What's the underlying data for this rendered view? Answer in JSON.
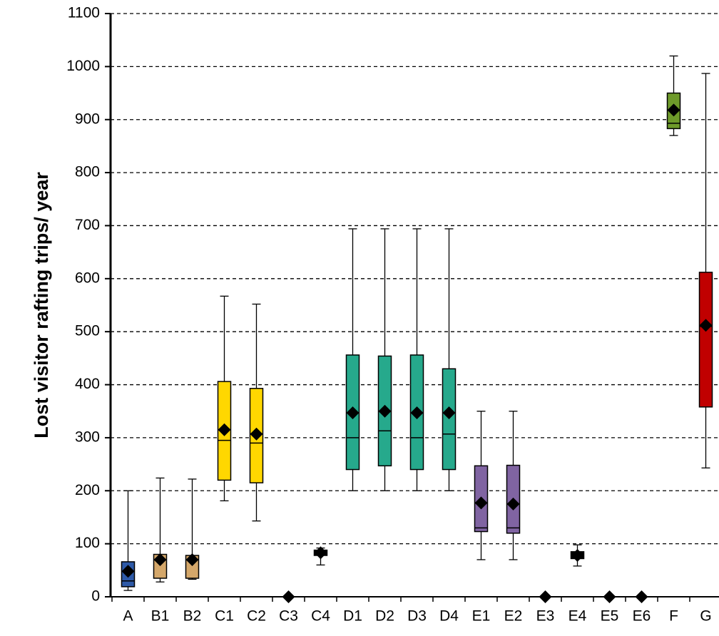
{
  "chart_data": {
    "type": "box",
    "y_label": "Lost visitor rafting trips/ year",
    "categories": [
      "A",
      "B1",
      "B2",
      "C1",
      "C2",
      "C3",
      "C4",
      "D1",
      "D2",
      "D3",
      "D4",
      "E1",
      "E2",
      "E3",
      "E4",
      "E5",
      "E6",
      "F",
      "G"
    ],
    "min": [
      12,
      28,
      33,
      181,
      143,
      0,
      60,
      200,
      200,
      200,
      200,
      70,
      70,
      0,
      58,
      0,
      0,
      870,
      243
    ],
    "q1": [
      19,
      35,
      35,
      220,
      215,
      0,
      78,
      240,
      247,
      240,
      240,
      123,
      120,
      0,
      72,
      0,
      0,
      883,
      358
    ],
    "median": [
      30,
      70,
      70,
      295,
      290,
      0,
      82,
      300,
      313,
      300,
      307,
      130,
      130,
      0,
      78,
      0,
      0,
      893,
      510
    ],
    "q3": [
      66,
      80,
      78,
      406,
      393,
      0,
      88,
      456,
      454,
      456,
      430,
      247,
      248,
      0,
      85,
      0,
      0,
      950,
      612
    ],
    "max": [
      200,
      224,
      222,
      567,
      552,
      0,
      92,
      694,
      694,
      694,
      694,
      350,
      350,
      0,
      98,
      0,
      0,
      1020,
      987
    ],
    "mean": [
      48,
      70,
      70,
      315,
      307,
      0,
      83,
      347,
      350,
      347,
      347,
      177,
      175,
      0,
      78,
      0,
      0,
      918,
      512
    ],
    "colors": [
      "#2e5aa8",
      "#d4a76a",
      "#d4a76a",
      "#ffd700",
      "#ffd700",
      "#000000",
      "#000000",
      "#26a98c",
      "#26a98c",
      "#26a98c",
      "#26a98c",
      "#8064a2",
      "#8064a2",
      "#000000",
      "#000000",
      "#000000",
      "#000000",
      "#6e9a2a",
      "#c00000"
    ],
    "ylim": [
      0,
      1100
    ],
    "yticks": [
      0,
      100,
      200,
      300,
      400,
      500,
      600,
      700,
      800,
      900,
      1000,
      1100
    ],
    "grid": true
  }
}
